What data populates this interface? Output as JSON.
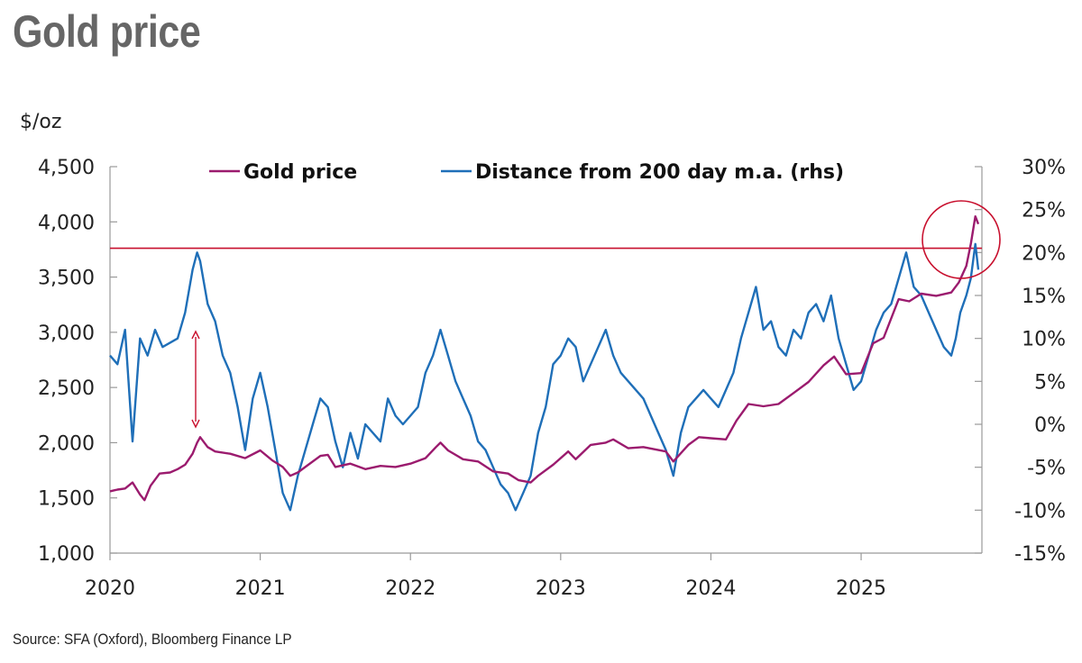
{
  "title": "Gold price",
  "source": "Source: SFA (Oxford), Bloomberg Finance LP",
  "colors": {
    "gold": "#9b1b6e",
    "distance": "#1f6fb8",
    "reference": "#c8102e"
  },
  "chart_data": {
    "type": "line",
    "left_axis_unit": "$/oz",
    "ylim_left": [
      1000,
      4500
    ],
    "ylim_right": [
      -15,
      30
    ],
    "yticks_left": [
      "1,000",
      "1,500",
      "2,000",
      "2,500",
      "3,000",
      "3,500",
      "4,000",
      "4,500"
    ],
    "yticks_right": [
      "-15%",
      "-10%",
      "-5%",
      "0%",
      "5%",
      "10%",
      "15%",
      "20%",
      "25%",
      "30%"
    ],
    "xticks": [
      "2020",
      "2021",
      "2022",
      "2023",
      "2024",
      "2025"
    ],
    "xlim": [
      2020.0,
      2025.78
    ],
    "legend": [
      "Gold price",
      "Distance from 200 day m.a. (rhs)"
    ],
    "legend_placement": "top",
    "reference_line_rhs": 20.5,
    "series": [
      {
        "name": "Gold price",
        "axis": "left",
        "points": [
          [
            2020.0,
            1560
          ],
          [
            2020.05,
            1575
          ],
          [
            2020.1,
            1585
          ],
          [
            2020.15,
            1640
          ],
          [
            2020.2,
            1530
          ],
          [
            2020.23,
            1480
          ],
          [
            2020.27,
            1610
          ],
          [
            2020.33,
            1720
          ],
          [
            2020.4,
            1730
          ],
          [
            2020.45,
            1760
          ],
          [
            2020.5,
            1800
          ],
          [
            2020.55,
            1900
          ],
          [
            2020.58,
            2000
          ],
          [
            2020.6,
            2050
          ],
          [
            2020.65,
            1960
          ],
          [
            2020.7,
            1920
          ],
          [
            2020.8,
            1900
          ],
          [
            2020.9,
            1860
          ],
          [
            2021.0,
            1930
          ],
          [
            2021.08,
            1840
          ],
          [
            2021.15,
            1780
          ],
          [
            2021.2,
            1700
          ],
          [
            2021.25,
            1730
          ],
          [
            2021.3,
            1780
          ],
          [
            2021.4,
            1880
          ],
          [
            2021.45,
            1890
          ],
          [
            2021.5,
            1780
          ],
          [
            2021.6,
            1810
          ],
          [
            2021.7,
            1760
          ],
          [
            2021.8,
            1790
          ],
          [
            2021.9,
            1780
          ],
          [
            2022.0,
            1810
          ],
          [
            2022.1,
            1860
          ],
          [
            2022.17,
            1960
          ],
          [
            2022.2,
            2000
          ],
          [
            2022.25,
            1930
          ],
          [
            2022.35,
            1850
          ],
          [
            2022.45,
            1830
          ],
          [
            2022.55,
            1740
          ],
          [
            2022.65,
            1720
          ],
          [
            2022.72,
            1660
          ],
          [
            2022.8,
            1640
          ],
          [
            2022.85,
            1700
          ],
          [
            2022.95,
            1800
          ],
          [
            2023.05,
            1920
          ],
          [
            2023.1,
            1850
          ],
          [
            2023.2,
            1980
          ],
          [
            2023.3,
            2000
          ],
          [
            2023.35,
            2030
          ],
          [
            2023.45,
            1950
          ],
          [
            2023.55,
            1960
          ],
          [
            2023.7,
            1920
          ],
          [
            2023.75,
            1830
          ],
          [
            2023.85,
            1980
          ],
          [
            2023.92,
            2050
          ],
          [
            2024.0,
            2040
          ],
          [
            2024.1,
            2030
          ],
          [
            2024.17,
            2200
          ],
          [
            2024.25,
            2350
          ],
          [
            2024.35,
            2330
          ],
          [
            2024.45,
            2350
          ],
          [
            2024.55,
            2450
          ],
          [
            2024.65,
            2550
          ],
          [
            2024.75,
            2700
          ],
          [
            2024.82,
            2780
          ],
          [
            2024.9,
            2620
          ],
          [
            2025.0,
            2630
          ],
          [
            2025.08,
            2900
          ],
          [
            2025.15,
            2950
          ],
          [
            2025.25,
            3300
          ],
          [
            2025.32,
            3280
          ],
          [
            2025.4,
            3350
          ],
          [
            2025.5,
            3330
          ],
          [
            2025.6,
            3360
          ],
          [
            2025.65,
            3450
          ],
          [
            2025.7,
            3600
          ],
          [
            2025.73,
            3800
          ],
          [
            2025.76,
            4050
          ],
          [
            2025.78,
            3980
          ]
        ]
      },
      {
        "name": "Distance from 200 day m.a. (rhs)",
        "axis": "right",
        "points": [
          [
            2020.0,
            8
          ],
          [
            2020.05,
            7
          ],
          [
            2020.1,
            11
          ],
          [
            2020.15,
            -2
          ],
          [
            2020.2,
            10
          ],
          [
            2020.25,
            8
          ],
          [
            2020.3,
            11
          ],
          [
            2020.35,
            9
          ],
          [
            2020.45,
            10
          ],
          [
            2020.5,
            13
          ],
          [
            2020.55,
            18
          ],
          [
            2020.58,
            20
          ],
          [
            2020.6,
            19
          ],
          [
            2020.65,
            14
          ],
          [
            2020.7,
            12
          ],
          [
            2020.75,
            8
          ],
          [
            2020.8,
            6
          ],
          [
            2020.85,
            2
          ],
          [
            2020.9,
            -3
          ],
          [
            2020.95,
            3
          ],
          [
            2021.0,
            6
          ],
          [
            2021.05,
            2
          ],
          [
            2021.1,
            -3
          ],
          [
            2021.15,
            -8
          ],
          [
            2021.2,
            -10
          ],
          [
            2021.25,
            -6
          ],
          [
            2021.3,
            -3
          ],
          [
            2021.35,
            0
          ],
          [
            2021.4,
            3
          ],
          [
            2021.45,
            2
          ],
          [
            2021.5,
            -2
          ],
          [
            2021.55,
            -5
          ],
          [
            2021.6,
            -1
          ],
          [
            2021.65,
            -4
          ],
          [
            2021.7,
            0
          ],
          [
            2021.8,
            -2
          ],
          [
            2021.85,
            3
          ],
          [
            2021.9,
            1
          ],
          [
            2021.95,
            0
          ],
          [
            2022.0,
            1
          ],
          [
            2022.05,
            2
          ],
          [
            2022.1,
            6
          ],
          [
            2022.15,
            8
          ],
          [
            2022.2,
            11
          ],
          [
            2022.25,
            8
          ],
          [
            2022.3,
            5
          ],
          [
            2022.35,
            3
          ],
          [
            2022.4,
            1
          ],
          [
            2022.45,
            -2
          ],
          [
            2022.5,
            -3
          ],
          [
            2022.55,
            -5
          ],
          [
            2022.6,
            -7
          ],
          [
            2022.65,
            -8
          ],
          [
            2022.7,
            -10
          ],
          [
            2022.75,
            -8
          ],
          [
            2022.8,
            -6
          ],
          [
            2022.85,
            -1
          ],
          [
            2022.9,
            2
          ],
          [
            2022.95,
            7
          ],
          [
            2023.0,
            8
          ],
          [
            2023.05,
            10
          ],
          [
            2023.1,
            9
          ],
          [
            2023.15,
            5
          ],
          [
            2023.2,
            7
          ],
          [
            2023.25,
            9
          ],
          [
            2023.3,
            11
          ],
          [
            2023.35,
            8
          ],
          [
            2023.4,
            6
          ],
          [
            2023.45,
            5
          ],
          [
            2023.55,
            3
          ],
          [
            2023.6,
            1
          ],
          [
            2023.65,
            -1
          ],
          [
            2023.7,
            -3
          ],
          [
            2023.75,
            -6
          ],
          [
            2023.8,
            -1
          ],
          [
            2023.85,
            2
          ],
          [
            2023.95,
            4
          ],
          [
            2024.0,
            3
          ],
          [
            2024.05,
            2
          ],
          [
            2024.1,
            4
          ],
          [
            2024.15,
            6
          ],
          [
            2024.2,
            10
          ],
          [
            2024.25,
            13
          ],
          [
            2024.3,
            16
          ],
          [
            2024.35,
            11
          ],
          [
            2024.4,
            12
          ],
          [
            2024.45,
            9
          ],
          [
            2024.5,
            8
          ],
          [
            2024.55,
            11
          ],
          [
            2024.6,
            10
          ],
          [
            2024.65,
            13
          ],
          [
            2024.7,
            14
          ],
          [
            2024.75,
            12
          ],
          [
            2024.8,
            15
          ],
          [
            2024.85,
            10
          ],
          [
            2024.9,
            7
          ],
          [
            2024.95,
            4
          ],
          [
            2025.0,
            5
          ],
          [
            2025.05,
            8
          ],
          [
            2025.1,
            11
          ],
          [
            2025.15,
            13
          ],
          [
            2025.2,
            14
          ],
          [
            2025.25,
            17
          ],
          [
            2025.3,
            20
          ],
          [
            2025.35,
            16
          ],
          [
            2025.4,
            15
          ],
          [
            2025.45,
            13
          ],
          [
            2025.5,
            11
          ],
          [
            2025.55,
            9
          ],
          [
            2025.6,
            8
          ],
          [
            2025.63,
            10
          ],
          [
            2025.66,
            13
          ],
          [
            2025.7,
            15
          ],
          [
            2025.73,
            17
          ],
          [
            2025.76,
            21
          ],
          [
            2025.78,
            18
          ]
        ]
      }
    ]
  }
}
